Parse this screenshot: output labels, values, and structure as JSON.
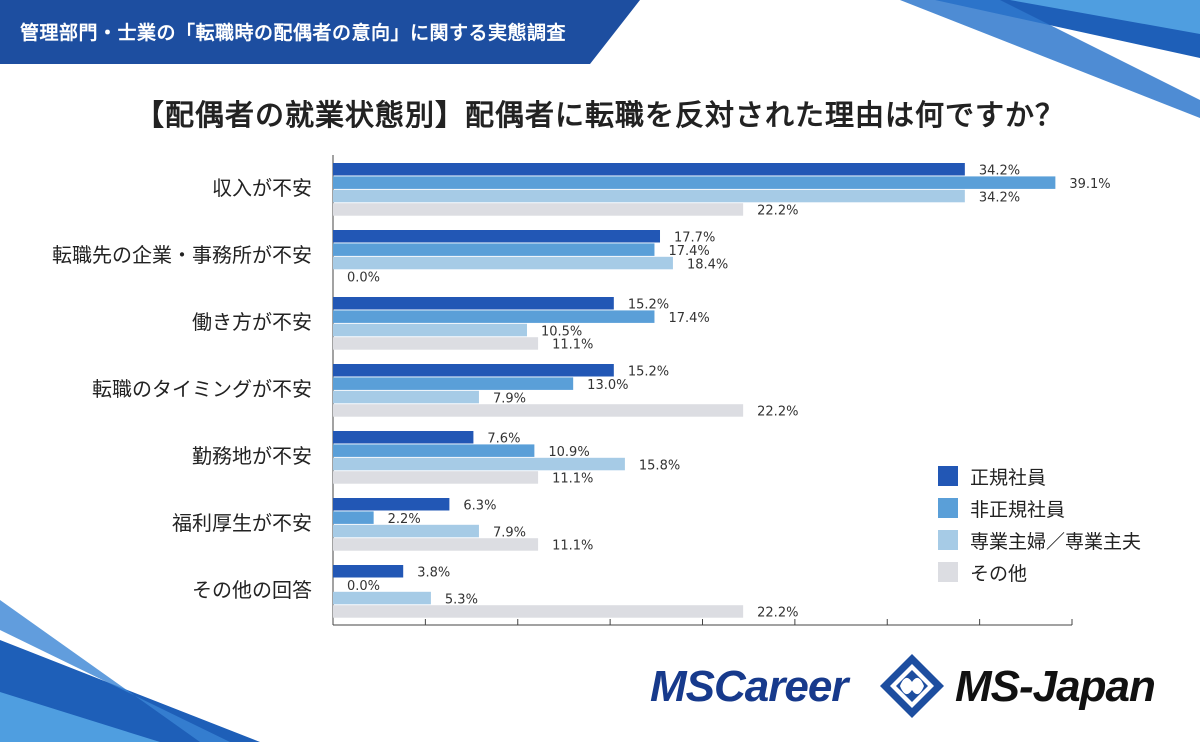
{
  "header": {
    "title": "管理部門・士業の「転職時の配偶者の意向」に関する実態調査"
  },
  "chart_data": {
    "type": "bar",
    "orientation": "horizontal",
    "title": "【配偶者の就業状態別】配偶者に転職を反対された理由は何ですか？",
    "categories": [
      "収入が不安",
      "転職先の企業・事務所が不安",
      "働き方が不安",
      "転職のタイミングが不安",
      "勤務地が不安",
      "福利厚生が不安",
      "その他の回答"
    ],
    "series": [
      {
        "name": "正規社員",
        "color": "#2257b5",
        "values": [
          34.2,
          17.7,
          15.2,
          15.2,
          7.6,
          6.3,
          3.8
        ]
      },
      {
        "name": "非正規社員",
        "color": "#5a9fd8",
        "values": [
          39.1,
          17.4,
          17.4,
          13.0,
          10.9,
          2.2,
          0.0
        ]
      },
      {
        "name": "専業主婦／専業主夫",
        "color": "#a6cbe6",
        "values": [
          34.2,
          18.4,
          10.5,
          7.9,
          15.8,
          7.9,
          5.3
        ]
      },
      {
        "name": "その他",
        "color": "#dcdde2",
        "values": [
          22.2,
          0.0,
          11.1,
          22.2,
          11.1,
          11.1,
          22.2
        ]
      }
    ],
    "value_labels": [
      [
        "34.2%",
        "39.1%",
        "34.2%",
        "22.2%"
      ],
      [
        "17.7%",
        "17.4%",
        "18.4%",
        "0.0%"
      ],
      [
        "15.2%",
        "17.4%",
        "10.5%",
        "11.1%"
      ],
      [
        "15.2%",
        "13.0%",
        "7.9%",
        "22.2%"
      ],
      [
        "7.6%",
        "10.9%",
        "15.8%",
        "11.1%"
      ],
      [
        "6.3%",
        "2.2%",
        "7.9%",
        "11.1%"
      ],
      [
        "3.8%",
        "0.0%",
        "5.3%",
        "22.2%"
      ]
    ],
    "xlim": [
      0,
      40
    ],
    "legend_position": "bottom-right",
    "grid": false
  },
  "logos": {
    "left": "MSCareer",
    "right": "MS-Japan"
  },
  "colors": {
    "header": "#1d4ea0",
    "accent": "#173a8c"
  }
}
